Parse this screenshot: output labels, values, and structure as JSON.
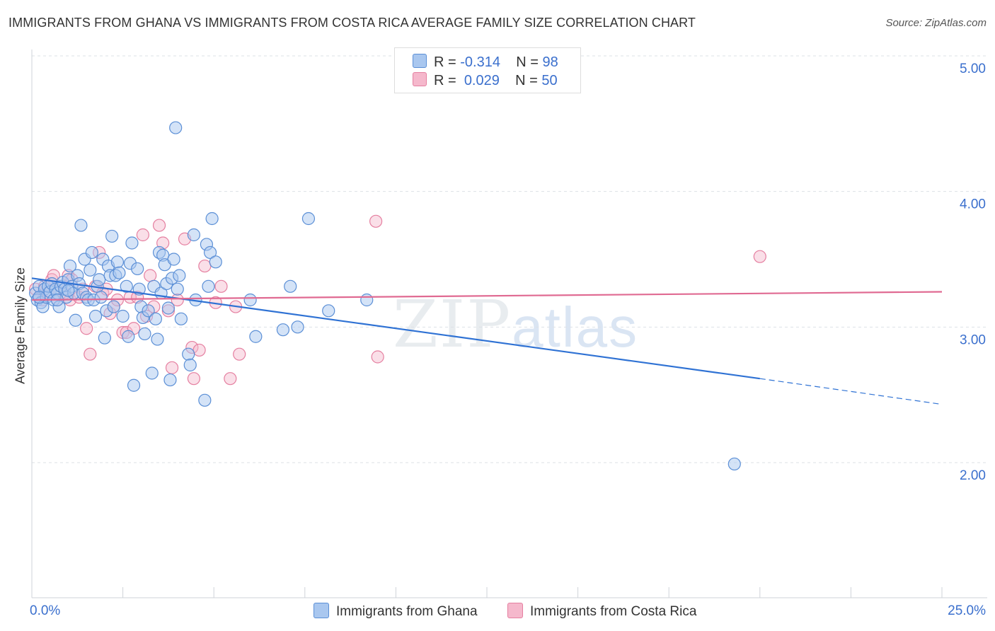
{
  "title": "IMMIGRANTS FROM GHANA VS IMMIGRANTS FROM COSTA RICA AVERAGE FAMILY SIZE CORRELATION CHART",
  "source": "Source: ZipAtlas.com",
  "watermark": {
    "zip": "ZIP",
    "atlas": "atlas"
  },
  "legend": {
    "ghana": {
      "r_label": "R =",
      "r_value": "-0.314",
      "n_label": "N =",
      "n_value": "98"
    },
    "costa_rica": {
      "r_label": "R =",
      "r_value": "0.029",
      "n_label": "N =",
      "n_value": "50"
    }
  },
  "colors": {
    "ghana_fill": "#a9c7ef",
    "ghana_stroke": "#5b8fd6",
    "ghana_line": "#2f72d4",
    "costa_fill": "#f5b8cc",
    "costa_stroke": "#e57fa0",
    "costa_line": "#e06a92",
    "tick_label": "#3a6fcd"
  },
  "chart_data": {
    "type": "scatter",
    "title": "IMMIGRANTS FROM GHANA VS IMMIGRANTS FROM COSTA RICA AVERAGE FAMILY SIZE CORRELATION CHART",
    "xlabel": "",
    "ylabel": "Average Family Size",
    "xlim": [
      0,
      25
    ],
    "ylim": [
      1.0,
      5.1
    ],
    "x_tick_labels": [
      "0.0%",
      "25.0%"
    ],
    "y_ticks": [
      2.0,
      3.0,
      4.0,
      5.0
    ],
    "y_tick_labels": [
      "2.00",
      "3.00",
      "4.00",
      "5.00"
    ],
    "grid": "horizontal dashed",
    "legend_position": "top-center",
    "series": [
      {
        "name": "Immigrants from Ghana",
        "trend": {
          "x": [
            0,
            20
          ],
          "y": [
            3.36,
            2.62
          ],
          "dashed_extension": {
            "x": [
              20,
              25
            ],
            "y": [
              2.62,
              2.43
            ]
          }
        },
        "points": [
          [
            0.1,
            3.25
          ],
          [
            0.15,
            3.2
          ],
          [
            0.2,
            3.3
          ],
          [
            0.25,
            3.18
          ],
          [
            0.3,
            3.15
          ],
          [
            0.35,
            3.28
          ],
          [
            0.4,
            3.22
          ],
          [
            0.45,
            3.3
          ],
          [
            0.5,
            3.26
          ],
          [
            0.55,
            3.32
          ],
          [
            0.6,
            3.2
          ],
          [
            0.65,
            3.28
          ],
          [
            0.7,
            3.25
          ],
          [
            0.75,
            3.15
          ],
          [
            0.8,
            3.3
          ],
          [
            0.85,
            3.33
          ],
          [
            0.9,
            3.28
          ],
          [
            0.95,
            3.22
          ],
          [
            1.0,
            3.35
          ],
          [
            1.05,
            3.45
          ],
          [
            1.1,
            3.3
          ],
          [
            1.15,
            3.25
          ],
          [
            1.2,
            3.05
          ],
          [
            1.25,
            3.38
          ],
          [
            1.3,
            3.32
          ],
          [
            1.35,
            3.75
          ],
          [
            1.4,
            3.25
          ],
          [
            1.45,
            3.5
          ],
          [
            1.5,
            3.22
          ],
          [
            1.55,
            3.2
          ],
          [
            1.6,
            3.42
          ],
          [
            1.65,
            3.55
          ],
          [
            1.7,
            3.2
          ],
          [
            1.75,
            3.08
          ],
          [
            1.8,
            3.3
          ],
          [
            1.85,
            3.35
          ],
          [
            1.9,
            3.22
          ],
          [
            1.95,
            3.5
          ],
          [
            2.0,
            2.92
          ],
          [
            2.05,
            3.12
          ],
          [
            2.1,
            3.45
          ],
          [
            2.15,
            3.38
          ],
          [
            2.2,
            3.67
          ],
          [
            2.25,
            3.15
          ],
          [
            2.3,
            3.38
          ],
          [
            2.35,
            3.48
          ],
          [
            2.4,
            3.4
          ],
          [
            2.5,
            3.08
          ],
          [
            2.6,
            3.3
          ],
          [
            2.65,
            2.93
          ],
          [
            2.7,
            3.47
          ],
          [
            2.75,
            3.62
          ],
          [
            2.8,
            2.57
          ],
          [
            2.9,
            3.43
          ],
          [
            2.95,
            3.28
          ],
          [
            3.0,
            3.15
          ],
          [
            3.05,
            3.07
          ],
          [
            3.1,
            2.95
          ],
          [
            3.2,
            3.12
          ],
          [
            3.3,
            2.66
          ],
          [
            3.35,
            3.3
          ],
          [
            3.4,
            3.06
          ],
          [
            3.45,
            2.91
          ],
          [
            3.5,
            3.55
          ],
          [
            3.55,
            3.25
          ],
          [
            3.6,
            3.53
          ],
          [
            3.65,
            3.46
          ],
          [
            3.7,
            3.32
          ],
          [
            3.75,
            3.14
          ],
          [
            3.8,
            2.61
          ],
          [
            3.85,
            3.36
          ],
          [
            3.9,
            3.5
          ],
          [
            3.95,
            4.47
          ],
          [
            4.0,
            3.28
          ],
          [
            4.05,
            3.38
          ],
          [
            4.1,
            3.06
          ],
          [
            4.3,
            2.8
          ],
          [
            4.35,
            2.72
          ],
          [
            4.45,
            3.68
          ],
          [
            4.5,
            3.2
          ],
          [
            4.75,
            2.46
          ],
          [
            4.8,
            3.61
          ],
          [
            4.85,
            3.3
          ],
          [
            4.9,
            3.55
          ],
          [
            4.95,
            3.8
          ],
          [
            5.05,
            3.48
          ],
          [
            6.0,
            3.2
          ],
          [
            6.15,
            2.93
          ],
          [
            6.9,
            2.98
          ],
          [
            7.1,
            3.3
          ],
          [
            7.3,
            3.0
          ],
          [
            7.6,
            3.8
          ],
          [
            8.15,
            3.12
          ],
          [
            9.2,
            3.2
          ],
          [
            19.3,
            1.99
          ],
          [
            0.2,
            3.22
          ],
          [
            0.7,
            3.2
          ],
          [
            1.0,
            3.27
          ]
        ]
      },
      {
        "name": "Immigrants from Costa Rica",
        "trend": {
          "x": [
            0,
            25
          ],
          "y": [
            3.2,
            3.26
          ]
        },
        "points": [
          [
            0.1,
            3.28
          ],
          [
            0.2,
            3.22
          ],
          [
            0.3,
            3.2
          ],
          [
            0.35,
            3.3
          ],
          [
            0.45,
            3.25
          ],
          [
            0.55,
            3.35
          ],
          [
            0.6,
            3.38
          ],
          [
            0.7,
            3.2
          ],
          [
            0.8,
            3.3
          ],
          [
            0.9,
            3.25
          ],
          [
            1.0,
            3.38
          ],
          [
            1.05,
            3.2
          ],
          [
            1.1,
            3.35
          ],
          [
            1.3,
            3.22
          ],
          [
            1.4,
            3.28
          ],
          [
            1.5,
            2.99
          ],
          [
            1.6,
            2.8
          ],
          [
            1.75,
            3.3
          ],
          [
            1.85,
            3.55
          ],
          [
            1.95,
            3.25
          ],
          [
            2.05,
            3.28
          ],
          [
            2.15,
            3.1
          ],
          [
            2.25,
            3.15
          ],
          [
            2.35,
            3.2
          ],
          [
            2.5,
            2.96
          ],
          [
            2.6,
            2.96
          ],
          [
            2.7,
            3.22
          ],
          [
            2.8,
            2.99
          ],
          [
            2.9,
            3.22
          ],
          [
            3.05,
            3.68
          ],
          [
            3.15,
            3.08
          ],
          [
            3.25,
            3.38
          ],
          [
            3.35,
            3.15
          ],
          [
            3.5,
            3.75
          ],
          [
            3.6,
            3.62
          ],
          [
            3.75,
            3.12
          ],
          [
            3.85,
            2.7
          ],
          [
            4.0,
            3.2
          ],
          [
            4.2,
            3.65
          ],
          [
            4.4,
            2.85
          ],
          [
            4.45,
            2.62
          ],
          [
            4.6,
            2.83
          ],
          [
            4.75,
            3.45
          ],
          [
            5.05,
            3.18
          ],
          [
            5.2,
            3.3
          ],
          [
            5.45,
            2.62
          ],
          [
            5.6,
            3.15
          ],
          [
            5.7,
            2.8
          ],
          [
            9.5,
            2.78
          ],
          [
            9.45,
            3.78
          ]
        ],
        "extra_points": [
          [
            20.0,
            3.52
          ]
        ]
      }
    ]
  },
  "bottom_legend": {
    "ghana": "Immigrants from Ghana",
    "costa_rica": "Immigrants from Costa Rica"
  }
}
